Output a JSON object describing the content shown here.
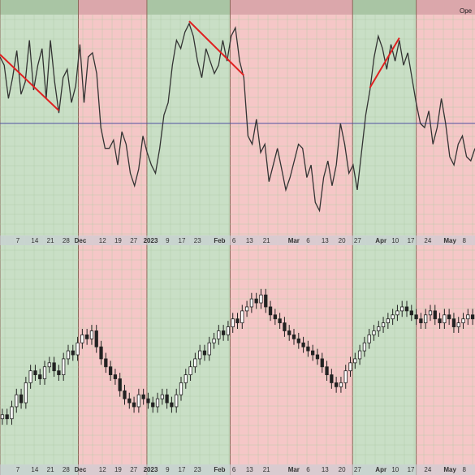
{
  "colors": {
    "bullish_zone": "#c9dfc6",
    "bearish_zone": "#f5c7c7",
    "bullish_header": "#a9c5a4",
    "bearish_header": "#dba7ab",
    "grid": "#a8c8a0",
    "line": "#333333",
    "divergence": "#e02020",
    "midline": "#5050a0",
    "candle_up": "#ffffff",
    "candle_down": "#222222",
    "axis_band": "#c8cdd6"
  },
  "top_label": "Ope",
  "chart_data": [
    {
      "type": "line",
      "title": "",
      "panel": "oscillator",
      "midline": 50,
      "ylim": [
        0,
        100
      ],
      "zones": [
        {
          "start": 0,
          "end": 16,
          "signal": "bullish"
        },
        {
          "start": 16,
          "end": 30,
          "signal": "bearish"
        },
        {
          "start": 30,
          "end": 47,
          "signal": "bullish"
        },
        {
          "start": 47,
          "end": 72,
          "signal": "bearish"
        },
        {
          "start": 72,
          "end": 85,
          "signal": "bullish"
        },
        {
          "start": 85,
          "end": 97,
          "signal": "bearish"
        }
      ],
      "x_ticks": [
        {
          "i": 1,
          "label": "7"
        },
        {
          "i": 2.3,
          "label": "14"
        },
        {
          "i": 3.5,
          "label": "21"
        },
        {
          "i": 4.7,
          "label": "28"
        },
        {
          "i": 5.8,
          "label": "Dec",
          "bold": true
        },
        {
          "i": 7.5,
          "label": "12"
        },
        {
          "i": 8.7,
          "label": "19"
        },
        {
          "i": 9.9,
          "label": "27"
        },
        {
          "i": 11.2,
          "label": "2023",
          "bold": true
        },
        {
          "i": 12.5,
          "label": "9"
        },
        {
          "i": 13.6,
          "label": "17"
        },
        {
          "i": 14.8,
          "label": "23"
        },
        {
          "i": 16.5,
          "label": "Feb",
          "bold": true
        },
        {
          "i": 17.6,
          "label": "6"
        },
        {
          "i": 18.8,
          "label": "13"
        },
        {
          "i": 20.1,
          "label": "21"
        },
        {
          "i": 22.2,
          "label": "Mar",
          "bold": true
        },
        {
          "i": 23.3,
          "label": "6"
        },
        {
          "i": 24.6,
          "label": "13"
        },
        {
          "i": 25.9,
          "label": "20"
        },
        {
          "i": 27.1,
          "label": "27"
        },
        {
          "i": 28.9,
          "label": "Apr",
          "bold": true
        },
        {
          "i": 30,
          "label": "10"
        },
        {
          "i": 31.2,
          "label": "17"
        },
        {
          "i": 32.5,
          "label": "24"
        },
        {
          "i": 34.2,
          "label": "May",
          "bold": true
        },
        {
          "i": 35.3,
          "label": "8"
        }
      ],
      "values": [
        82,
        78,
        62,
        72,
        85,
        64,
        70,
        90,
        66,
        78,
        86,
        62,
        90,
        70,
        55,
        72,
        76,
        60,
        68,
        88,
        60,
        82,
        84,
        74,
        48,
        38,
        38,
        42,
        30,
        46,
        40,
        26,
        20,
        28,
        44,
        36,
        30,
        26,
        38,
        54,
        60,
        78,
        90,
        86,
        94,
        98,
        92,
        80,
        72,
        86,
        80,
        74,
        78,
        90,
        80,
        92,
        96,
        80,
        72,
        44,
        40,
        52,
        36,
        40,
        22,
        30,
        38,
        28,
        18,
        24,
        32,
        40,
        38,
        24,
        30,
        12,
        8,
        24,
        32,
        20,
        30,
        50,
        40,
        26,
        30,
        18,
        36,
        54,
        66,
        82,
        92,
        86,
        76,
        88,
        80,
        90,
        78,
        84,
        72,
        60,
        50,
        48,
        56,
        40,
        48,
        62,
        50,
        34,
        30,
        40,
        44,
        34,
        32,
        38
      ]
    },
    {
      "type": "candlestick",
      "title": "",
      "panel": "price",
      "ylim": [
        0,
        100
      ],
      "values": [
        20,
        18,
        24,
        30,
        26,
        36,
        42,
        40,
        38,
        44,
        46,
        42,
        40,
        48,
        52,
        50,
        56,
        60,
        58,
        62,
        54,
        48,
        44,
        40,
        38,
        32,
        28,
        26,
        24,
        30,
        28,
        26,
        24,
        28,
        30,
        26,
        24,
        30,
        36,
        40,
        44,
        48,
        52,
        50,
        56,
        58,
        62,
        60,
        64,
        68,
        66,
        72,
        74,
        78,
        76,
        80,
        74,
        70,
        68,
        66,
        62,
        60,
        58,
        56,
        54,
        52,
        50,
        48,
        44,
        40,
        36,
        34,
        36,
        42,
        46,
        48,
        52,
        56,
        60,
        62,
        64,
        66,
        68,
        70,
        72,
        74,
        72,
        70,
        68,
        66,
        70,
        72,
        68,
        66,
        70,
        68,
        64,
        66,
        68,
        70,
        68
      ]
    }
  ]
}
